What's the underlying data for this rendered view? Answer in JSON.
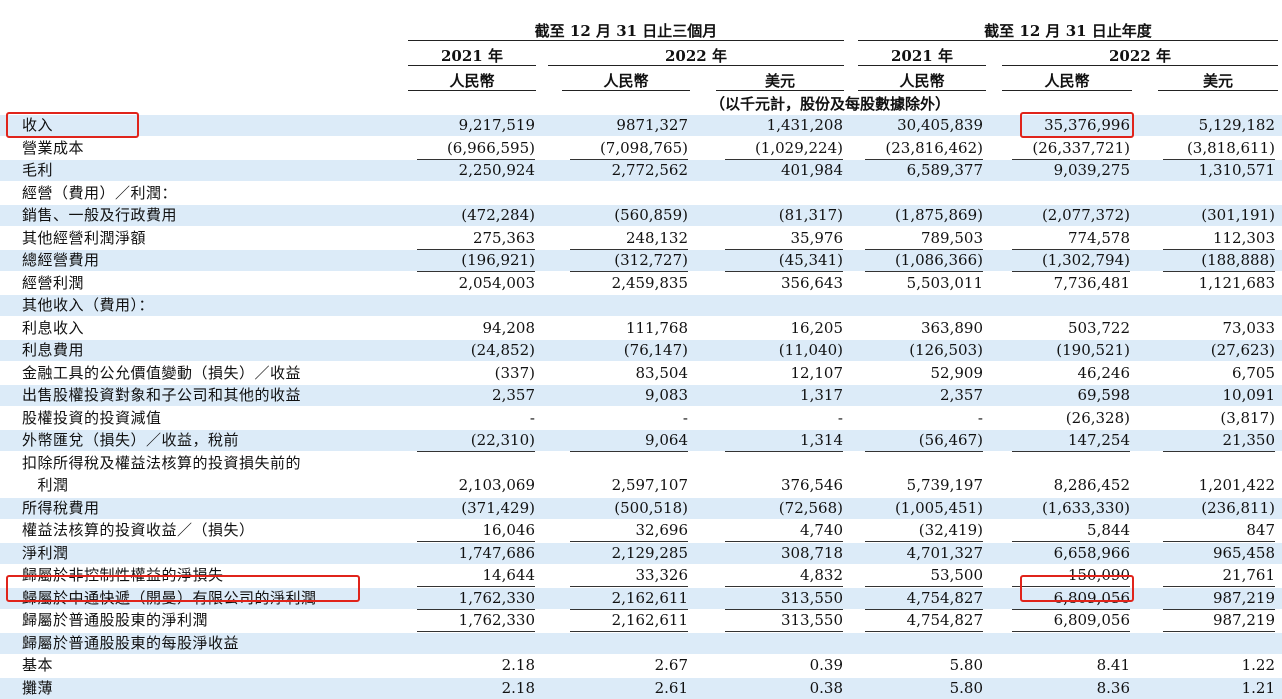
{
  "header": {
    "group_left": "截至 12 月 31 日止三個月",
    "group_right": "截至 12 月 31 日止年度",
    "year_2021_left": "2021 年",
    "year_2022_left": "2022 年",
    "year_2021_right": "2021 年",
    "year_2022_right": "2022 年",
    "currency_rmb": "人民幣",
    "currency_usd": "美元",
    "unit_note": "（以千元計，股份及每股數據除外）"
  },
  "rows": [
    {
      "label": "收入",
      "values": [
        "9,217,519",
        "9871,327",
        "1,431,208",
        "30,405,839",
        "35,376,996",
        "5,129,182"
      ],
      "shade": true
    },
    {
      "label": "營業成本",
      "values": [
        "(6,966,595)",
        "(7,098,765)",
        "(1,029,224)",
        "(23,816,462)",
        "(26,337,721)",
        "(3,818,611)"
      ],
      "shade": false,
      "underline": true
    },
    {
      "label": "毛利",
      "values": [
        "2,250,924",
        "2,772,562",
        "401,984",
        "6,589,377",
        "9,039,275",
        "1,310,571"
      ],
      "shade": true
    },
    {
      "label": "經營（費用）／利潤：",
      "values": [
        "",
        "",
        "",
        "",
        "",
        ""
      ],
      "shade": false
    },
    {
      "label": "銷售、一般及行政費用",
      "values": [
        "(472,284)",
        "(560,859)",
        "(81,317)",
        "(1,875,869)",
        "(2,077,372)",
        "(301,191)"
      ],
      "shade": true
    },
    {
      "label": "其他經營利潤淨額",
      "values": [
        "275,363",
        "248,132",
        "35,976",
        "789,503",
        "774,578",
        "112,303"
      ],
      "shade": false,
      "underline": true
    },
    {
      "label": "總經營費用",
      "values": [
        "(196,921)",
        "(312,727)",
        "(45,341)",
        "(1,086,366)",
        "(1,302,794)",
        "(188,888)"
      ],
      "shade": true,
      "underline": true
    },
    {
      "label": "經營利潤",
      "values": [
        "2,054,003",
        "2,459,835",
        "356,643",
        "5,503,011",
        "7,736,481",
        "1,121,683"
      ],
      "shade": false
    },
    {
      "label": "其他收入（費用）：",
      "values": [
        "",
        "",
        "",
        "",
        "",
        ""
      ],
      "shade": true
    },
    {
      "label": "利息收入",
      "values": [
        "94,208",
        "111,768",
        "16,205",
        "363,890",
        "503,722",
        "73,033"
      ],
      "shade": false
    },
    {
      "label": "利息費用",
      "values": [
        "(24,852)",
        "(76,147)",
        "(11,040)",
        "(126,503)",
        "(190,521)",
        "(27,623)"
      ],
      "shade": true
    },
    {
      "label": "金融工具的公允價值變動（損失）／收益",
      "values": [
        "(337)",
        "83,504",
        "12,107",
        "52,909",
        "46,246",
        "6,705"
      ],
      "shade": false
    },
    {
      "label": "出售股權投資對象和子公司和其他的收益",
      "values": [
        "2,357",
        "9,083",
        "1,317",
        "2,357",
        "69,598",
        "10,091"
      ],
      "shade": true
    },
    {
      "label": "股權投資的投資減值",
      "values": [
        "-",
        "-",
        "-",
        "-",
        "(26,328)",
        "(3,817)"
      ],
      "shade": false
    },
    {
      "label": "外幣匯兌（損失）／收益，稅前",
      "values": [
        "(22,310)",
        "9,064",
        "1,314",
        "(56,467)",
        "147,254",
        "21,350"
      ],
      "shade": true,
      "underline": true
    },
    {
      "label": "扣除所得稅及權益法核算的投資損失前的",
      "values": [
        "",
        "",
        "",
        "",
        "",
        ""
      ],
      "shade": false
    },
    {
      "label": "　利潤",
      "values": [
        "2,103,069",
        "2,597,107",
        "376,546",
        "5,739,197",
        "8,286,452",
        "1,201,422"
      ],
      "shade": false
    },
    {
      "label": "所得稅費用",
      "values": [
        "(371,429)",
        "(500,518)",
        "(72,568)",
        "(1,005,451)",
        "(1,633,330)",
        "(236,811)"
      ],
      "shade": true
    },
    {
      "label": "權益法核算的投資收益／（損失）",
      "values": [
        "16,046",
        "32,696",
        "4,740",
        "(32,419)",
        "5,844",
        "847"
      ],
      "shade": false,
      "underline": true
    },
    {
      "label": "淨利潤",
      "values": [
        "1,747,686",
        "2,129,285",
        "308,718",
        "4,701,327",
        "6,658,966",
        "965,458"
      ],
      "shade": true
    },
    {
      "label": "歸屬於非控制性權益的淨損失",
      "values": [
        "14,644",
        "33,326",
        "4,832",
        "53,500",
        "150,090",
        "21,761"
      ],
      "shade": false,
      "underline": true
    },
    {
      "label": "歸屬於中通快遞（開曼）有限公司的淨利潤",
      "values": [
        "1,762,330",
        "2,162,611",
        "313,550",
        "4,754,827",
        "6,809,056",
        "987,219"
      ],
      "shade": true,
      "underline": true
    },
    {
      "label": "歸屬於普通股股東的淨利潤",
      "values": [
        "1,762,330",
        "2,162,611",
        "313,550",
        "4,754,827",
        "6,809,056",
        "987,219"
      ],
      "shade": false,
      "underline": true
    },
    {
      "label": "歸屬於普通股股東的每股淨收益",
      "values": [
        "",
        "",
        "",
        "",
        "",
        ""
      ],
      "shade": true
    },
    {
      "label": "基本",
      "values": [
        "2.18",
        "2.67",
        "0.39",
        "5.80",
        "8.41",
        "1.22"
      ],
      "shade": false
    },
    {
      "label": "攤薄",
      "values": [
        "2.18",
        "2.61",
        "0.38",
        "5.80",
        "8.36",
        "1.21"
      ],
      "shade": true
    }
  ],
  "highlight_color": "#e0241b",
  "row_shade_color": "#dcebf8"
}
